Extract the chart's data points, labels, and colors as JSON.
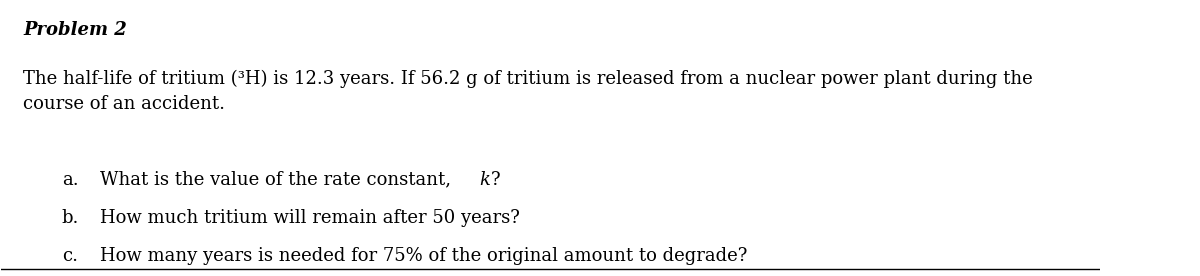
{
  "background_color": "#ffffff",
  "title": "Problem 2",
  "title_fontsize": 13,
  "title_bold": true,
  "title_italic": true,
  "body_text": "The half-life of tritium (³H) is 12.3 years. If 56.2 g of tritium is released from a nuclear power plant during the\ncourse of an accident.",
  "body_fontsize": 13,
  "items": [
    {
      "label": "a.",
      "text": "What is the value of the rate constant, k?"
    },
    {
      "label": "b.",
      "text": "How much tritium will remain after 50 years?"
    },
    {
      "label": "c.",
      "text": "How many years is needed for 75% of the original amount to degrade?"
    }
  ],
  "item_fontsize": 13,
  "item_indent_label": 0.055,
  "item_indent_text": 0.09,
  "line_color": "#000000",
  "text_color": "#000000",
  "font_family": "serif"
}
